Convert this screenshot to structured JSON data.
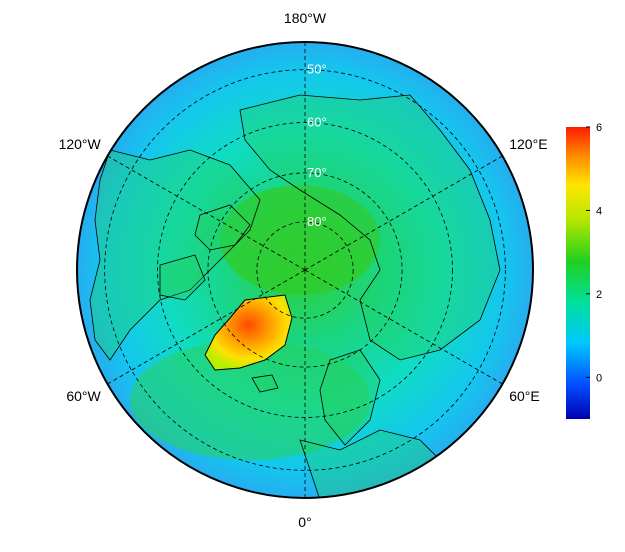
{
  "map": {
    "projection": "north-polar-stereographic",
    "lon_labels": [
      {
        "text": "180°W",
        "lon": 180
      },
      {
        "text": "120°W",
        "lon": -120
      },
      {
        "text": "120°E",
        "lon": 120
      },
      {
        "text": "60°W",
        "lon": -60
      },
      {
        "text": "60°E",
        "lon": 60
      },
      {
        "text": "0°",
        "lon": 0
      }
    ],
    "lat_labels": [
      {
        "text": "50°",
        "lat": 50
      },
      {
        "text": "60°",
        "lat": 60
      },
      {
        "text": "70°",
        "lat": 70
      },
      {
        "text": "80°",
        "lat": 80
      }
    ],
    "gridline_style": "dashed",
    "colormap": "jet"
  },
  "colorbar": {
    "min": -1,
    "max": 6,
    "ticks": [
      {
        "value": 0,
        "label": "0"
      },
      {
        "value": 2,
        "label": "2"
      },
      {
        "value": 4,
        "label": "4"
      },
      {
        "value": 6,
        "label": "6"
      }
    ]
  }
}
